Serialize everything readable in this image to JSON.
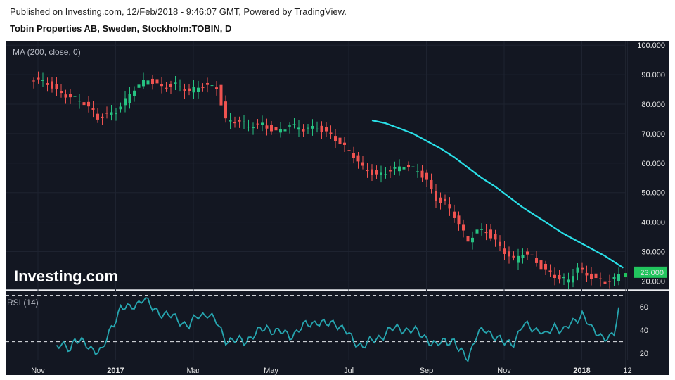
{
  "header": {
    "published": "Published on Investing.com, 12/Feb/2018 - 9:46:07 GMT, Powered by TradingView.",
    "instrument": "Tobin Properties AB, Sweden, Stockholm:TOBIN, D"
  },
  "colors": {
    "background": "#131722",
    "up": "#26c281",
    "down": "#ef5350",
    "ma": "#29e0e8",
    "rsi": "#26a6b0",
    "price_badge": "#22c55e"
  },
  "chart_data": [
    {
      "type": "candlestick",
      "indicator_label": "MA (200, close, 0)",
      "watermark": "Investing.com",
      "ylim": [
        17,
        101
      ],
      "y_ticks": [
        "100.000",
        "90.000",
        "80.000",
        "70.000",
        "60.000",
        "50.000",
        "40.000",
        "30.000",
        "20.000"
      ],
      "x_ticks": [
        "Nov",
        "2017",
        "Mar",
        "May",
        "Jul",
        "Sep",
        "Nov",
        "2018",
        "12"
      ],
      "last_price": "23.000",
      "price_anchors": [
        [
          0,
          88
        ],
        [
          3,
          87
        ],
        [
          6,
          84
        ],
        [
          9,
          82
        ],
        [
          11,
          80
        ],
        [
          13,
          77
        ],
        [
          14,
          75
        ],
        [
          15,
          76
        ],
        [
          18,
          78
        ],
        [
          22,
          85
        ],
        [
          25,
          88
        ],
        [
          28,
          86
        ],
        [
          31,
          87
        ],
        [
          34,
          84
        ],
        [
          37,
          86
        ],
        [
          40,
          86
        ],
        [
          42,
          75
        ],
        [
          45,
          74
        ],
        [
          47,
          72
        ],
        [
          50,
          73
        ],
        [
          53,
          71
        ],
        [
          56,
          73
        ],
        [
          59,
          71
        ],
        [
          62,
          72
        ],
        [
          65,
          70
        ],
        [
          67,
          67
        ],
        [
          69,
          64
        ],
        [
          72,
          58
        ],
        [
          75,
          56
        ],
        [
          78,
          58
        ],
        [
          81,
          59
        ],
        [
          84,
          57
        ],
        [
          86,
          54
        ],
        [
          88,
          48
        ],
        [
          90,
          47
        ],
        [
          92,
          42
        ],
        [
          94,
          36
        ],
        [
          95,
          33
        ],
        [
          97,
          37
        ],
        [
          99,
          37
        ],
        [
          101,
          34
        ],
        [
          103,
          30
        ],
        [
          105,
          27
        ],
        [
          107,
          29
        ],
        [
          109,
          28
        ],
        [
          111,
          25
        ],
        [
          113,
          23
        ],
        [
          115,
          21
        ],
        [
          117,
          20
        ],
        [
          119,
          24
        ],
        [
          121,
          22
        ],
        [
          123,
          21
        ],
        [
          125,
          20
        ],
        [
          127,
          21
        ],
        [
          128,
          22
        ]
      ],
      "ma_series": [
        [
          74,
          74.5
        ],
        [
          77,
          73.5
        ],
        [
          80,
          71.8
        ],
        [
          83,
          70
        ],
        [
          86,
          67.5
        ],
        [
          89,
          65
        ],
        [
          92,
          62
        ],
        [
          95,
          58.5
        ],
        [
          98,
          55
        ],
        [
          101,
          52
        ],
        [
          104,
          48.5
        ],
        [
          107,
          45
        ],
        [
          110,
          42
        ],
        [
          113,
          39
        ],
        [
          116,
          36
        ],
        [
          119,
          33.5
        ],
        [
          122,
          31
        ],
        [
          125,
          28.5
        ],
        [
          128,
          25.5
        ],
        [
          129,
          24.5
        ]
      ]
    },
    {
      "type": "line",
      "indicator_label": "RSI (14)",
      "ylim": [
        14,
        74
      ],
      "y_ticks": [
        "60",
        "40",
        "20"
      ],
      "guides": [
        70,
        30
      ],
      "rsi_anchors": [
        [
          5,
          26
        ],
        [
          8,
          25
        ],
        [
          9,
          33
        ],
        [
          12,
          25
        ],
        [
          15,
          22
        ],
        [
          17,
          42
        ],
        [
          19,
          60
        ],
        [
          21,
          58
        ],
        [
          24,
          68
        ],
        [
          26,
          58
        ],
        [
          28,
          55
        ],
        [
          31,
          50
        ],
        [
          34,
          44
        ],
        [
          36,
          52
        ],
        [
          38,
          55
        ],
        [
          40,
          46
        ],
        [
          42,
          32
        ],
        [
          44,
          31
        ],
        [
          46,
          30
        ],
        [
          48,
          36
        ],
        [
          51,
          42
        ],
        [
          54,
          38
        ],
        [
          56,
          35
        ],
        [
          59,
          43
        ],
        [
          62,
          48
        ],
        [
          64,
          44
        ],
        [
          66,
          47
        ],
        [
          68,
          40
        ],
        [
          70,
          30
        ],
        [
          72,
          27
        ],
        [
          74,
          30
        ],
        [
          76,
          35
        ],
        [
          78,
          40
        ],
        [
          80,
          42
        ],
        [
          82,
          40
        ],
        [
          84,
          38
        ],
        [
          86,
          34
        ],
        [
          87,
          28
        ],
        [
          88,
          26
        ],
        [
          90,
          32
        ],
        [
          92,
          30
        ],
        [
          93,
          22
        ],
        [
          95,
          17
        ],
        [
          97,
          36
        ],
        [
          99,
          40
        ],
        [
          101,
          35
        ],
        [
          103,
          28
        ],
        [
          105,
          30
        ],
        [
          107,
          44
        ],
        [
          109,
          42
        ],
        [
          111,
          40
        ],
        [
          112,
          34
        ],
        [
          114,
          44
        ],
        [
          116,
          40
        ],
        [
          118,
          46
        ],
        [
          120,
          55
        ],
        [
          121,
          48
        ],
        [
          122,
          40
        ],
        [
          124,
          36
        ],
        [
          126,
          33
        ],
        [
          127,
          36
        ],
        [
          128,
          57
        ]
      ]
    }
  ]
}
